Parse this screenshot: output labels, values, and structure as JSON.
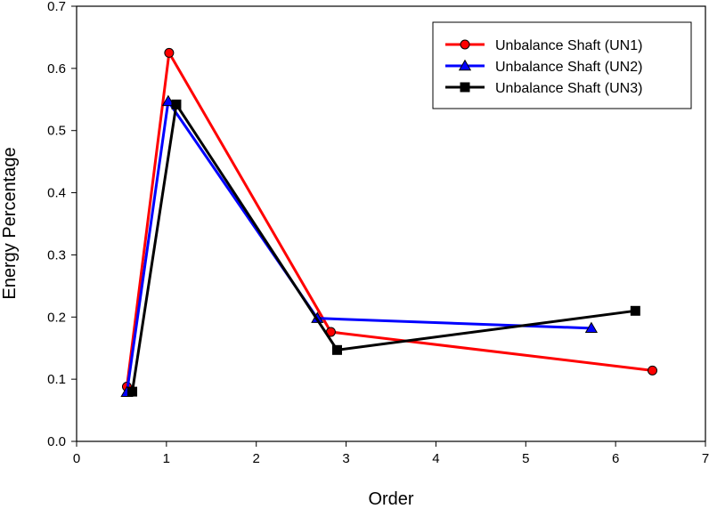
{
  "chart_data": {
    "type": "line",
    "title": "",
    "xlabel": "Order",
    "ylabel": "Energy Percentage",
    "xlim": [
      0,
      7
    ],
    "ylim": [
      0,
      0.7
    ],
    "xticks": [
      "0",
      "1",
      "2",
      "3",
      "4",
      "5",
      "6",
      "7"
    ],
    "yticks": [
      "0.0",
      "0.1",
      "0.2",
      "0.3",
      "0.4",
      "0.5",
      "0.6",
      "0.7"
    ],
    "grid": false,
    "legend_position": "top-right",
    "series": [
      {
        "name": "Unbalance Shaft (UN1)",
        "color": "#ff0000",
        "marker": "circle",
        "x": [
          0.56,
          1.03,
          2.83,
          6.41
        ],
        "y": [
          0.088,
          0.625,
          0.176,
          0.114
        ]
      },
      {
        "name": "Unbalance Shaft (UN2)",
        "color": "#0000ff",
        "marker": "triangle",
        "x": [
          0.56,
          1.02,
          2.68,
          5.73
        ],
        "y": [
          0.079,
          0.547,
          0.198,
          0.182
        ]
      },
      {
        "name": "Unbalance Shaft (UN3)",
        "color": "#000000",
        "marker": "square",
        "x": [
          0.62,
          1.11,
          2.9,
          6.22
        ],
        "y": [
          0.08,
          0.542,
          0.147,
          0.21
        ]
      }
    ]
  }
}
